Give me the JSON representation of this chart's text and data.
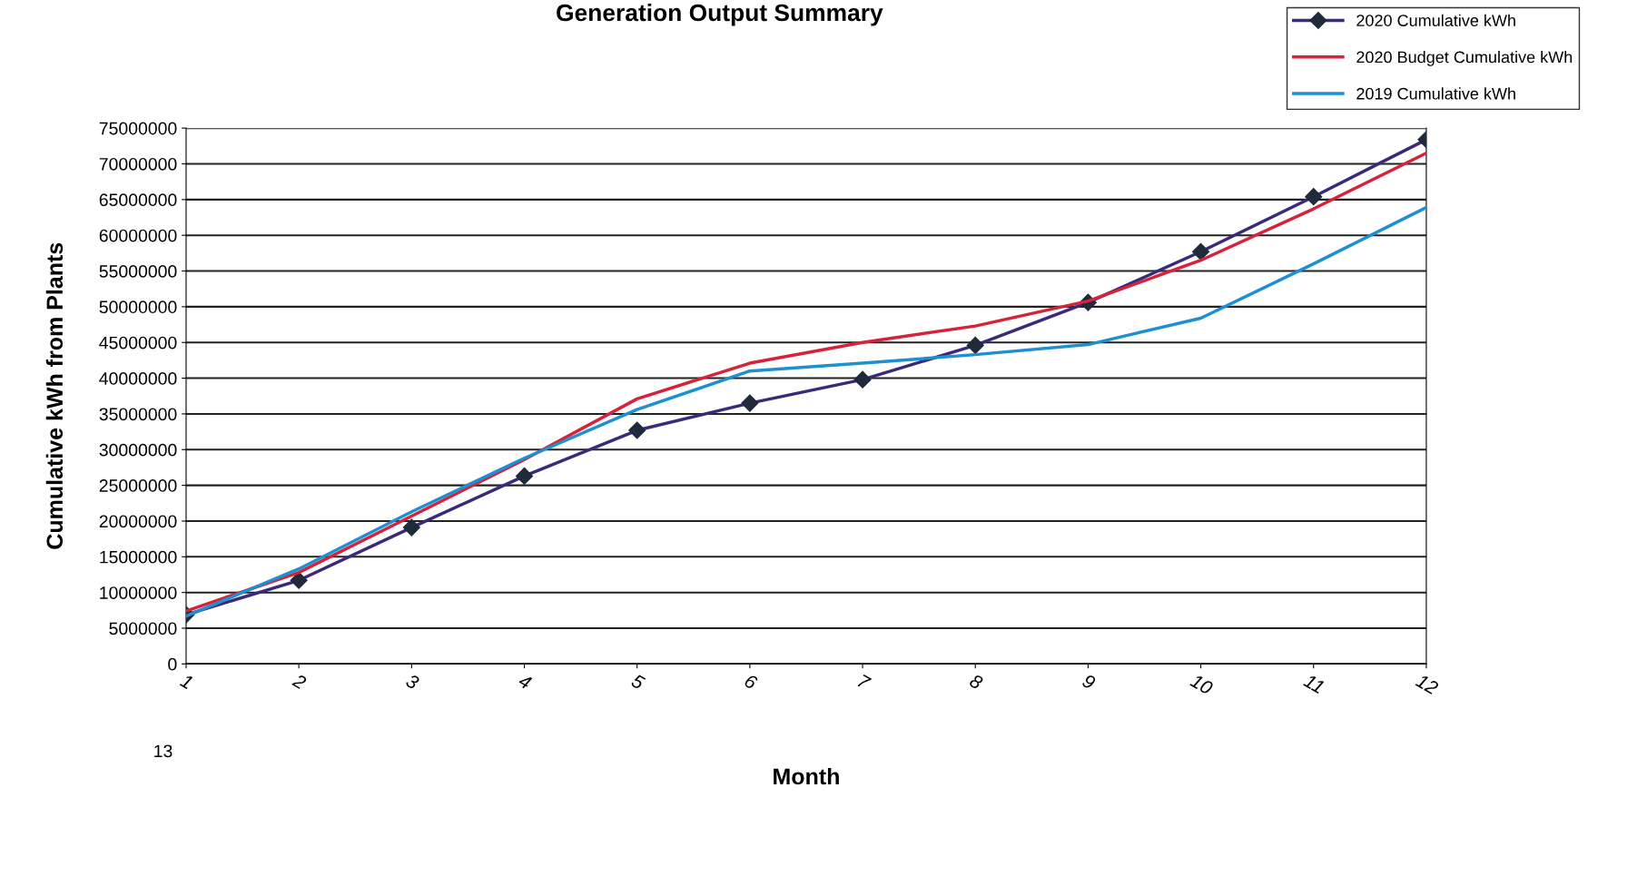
{
  "chart_data": {
    "type": "line",
    "title": "Generation Output Summary",
    "xlabel": "Month",
    "ylabel": "Cumulative kWh from Plants",
    "x": [
      1,
      2,
      3,
      4,
      5,
      6,
      7,
      8,
      9,
      10,
      11,
      12
    ],
    "series": [
      {
        "name": "2020 Cumulative kWh",
        "color": "#3b2a7a",
        "marker": "diamond",
        "values": [
          6900000,
          11700000,
          19100000,
          26300000,
          32700000,
          36500000,
          39800000,
          44600000,
          50600000,
          57700000,
          65400000,
          73400000
        ]
      },
      {
        "name": "2020 Budget Cumulative kWh",
        "color": "#d6223a",
        "values": [
          7400000,
          12800000,
          20700000,
          28600000,
          37100000,
          42100000,
          45000000,
          47300000,
          50800000,
          56500000,
          63700000,
          71500000
        ]
      },
      {
        "name": "2019 Cumulative kWh",
        "color": "#1e8fd0",
        "values": [
          6700000,
          13300000,
          21300000,
          28800000,
          35600000,
          41000000,
          42100000,
          43300000,
          44700000,
          48400000,
          56000000,
          63900000
        ]
      }
    ],
    "xlim": [
      1,
      12
    ],
    "xticks": [
      1,
      2,
      3,
      4,
      5,
      6,
      7,
      8,
      9,
      10,
      11,
      12
    ],
    "ylim": [
      0,
      75000000
    ],
    "yticks": [
      0,
      5000000,
      10000000,
      15000000,
      20000000,
      25000000,
      30000000,
      35000000,
      40000000,
      45000000,
      50000000,
      55000000,
      60000000,
      65000000,
      70000000,
      75000000
    ],
    "grid": "y",
    "legend": "top right",
    "annotations": [
      "13"
    ]
  }
}
